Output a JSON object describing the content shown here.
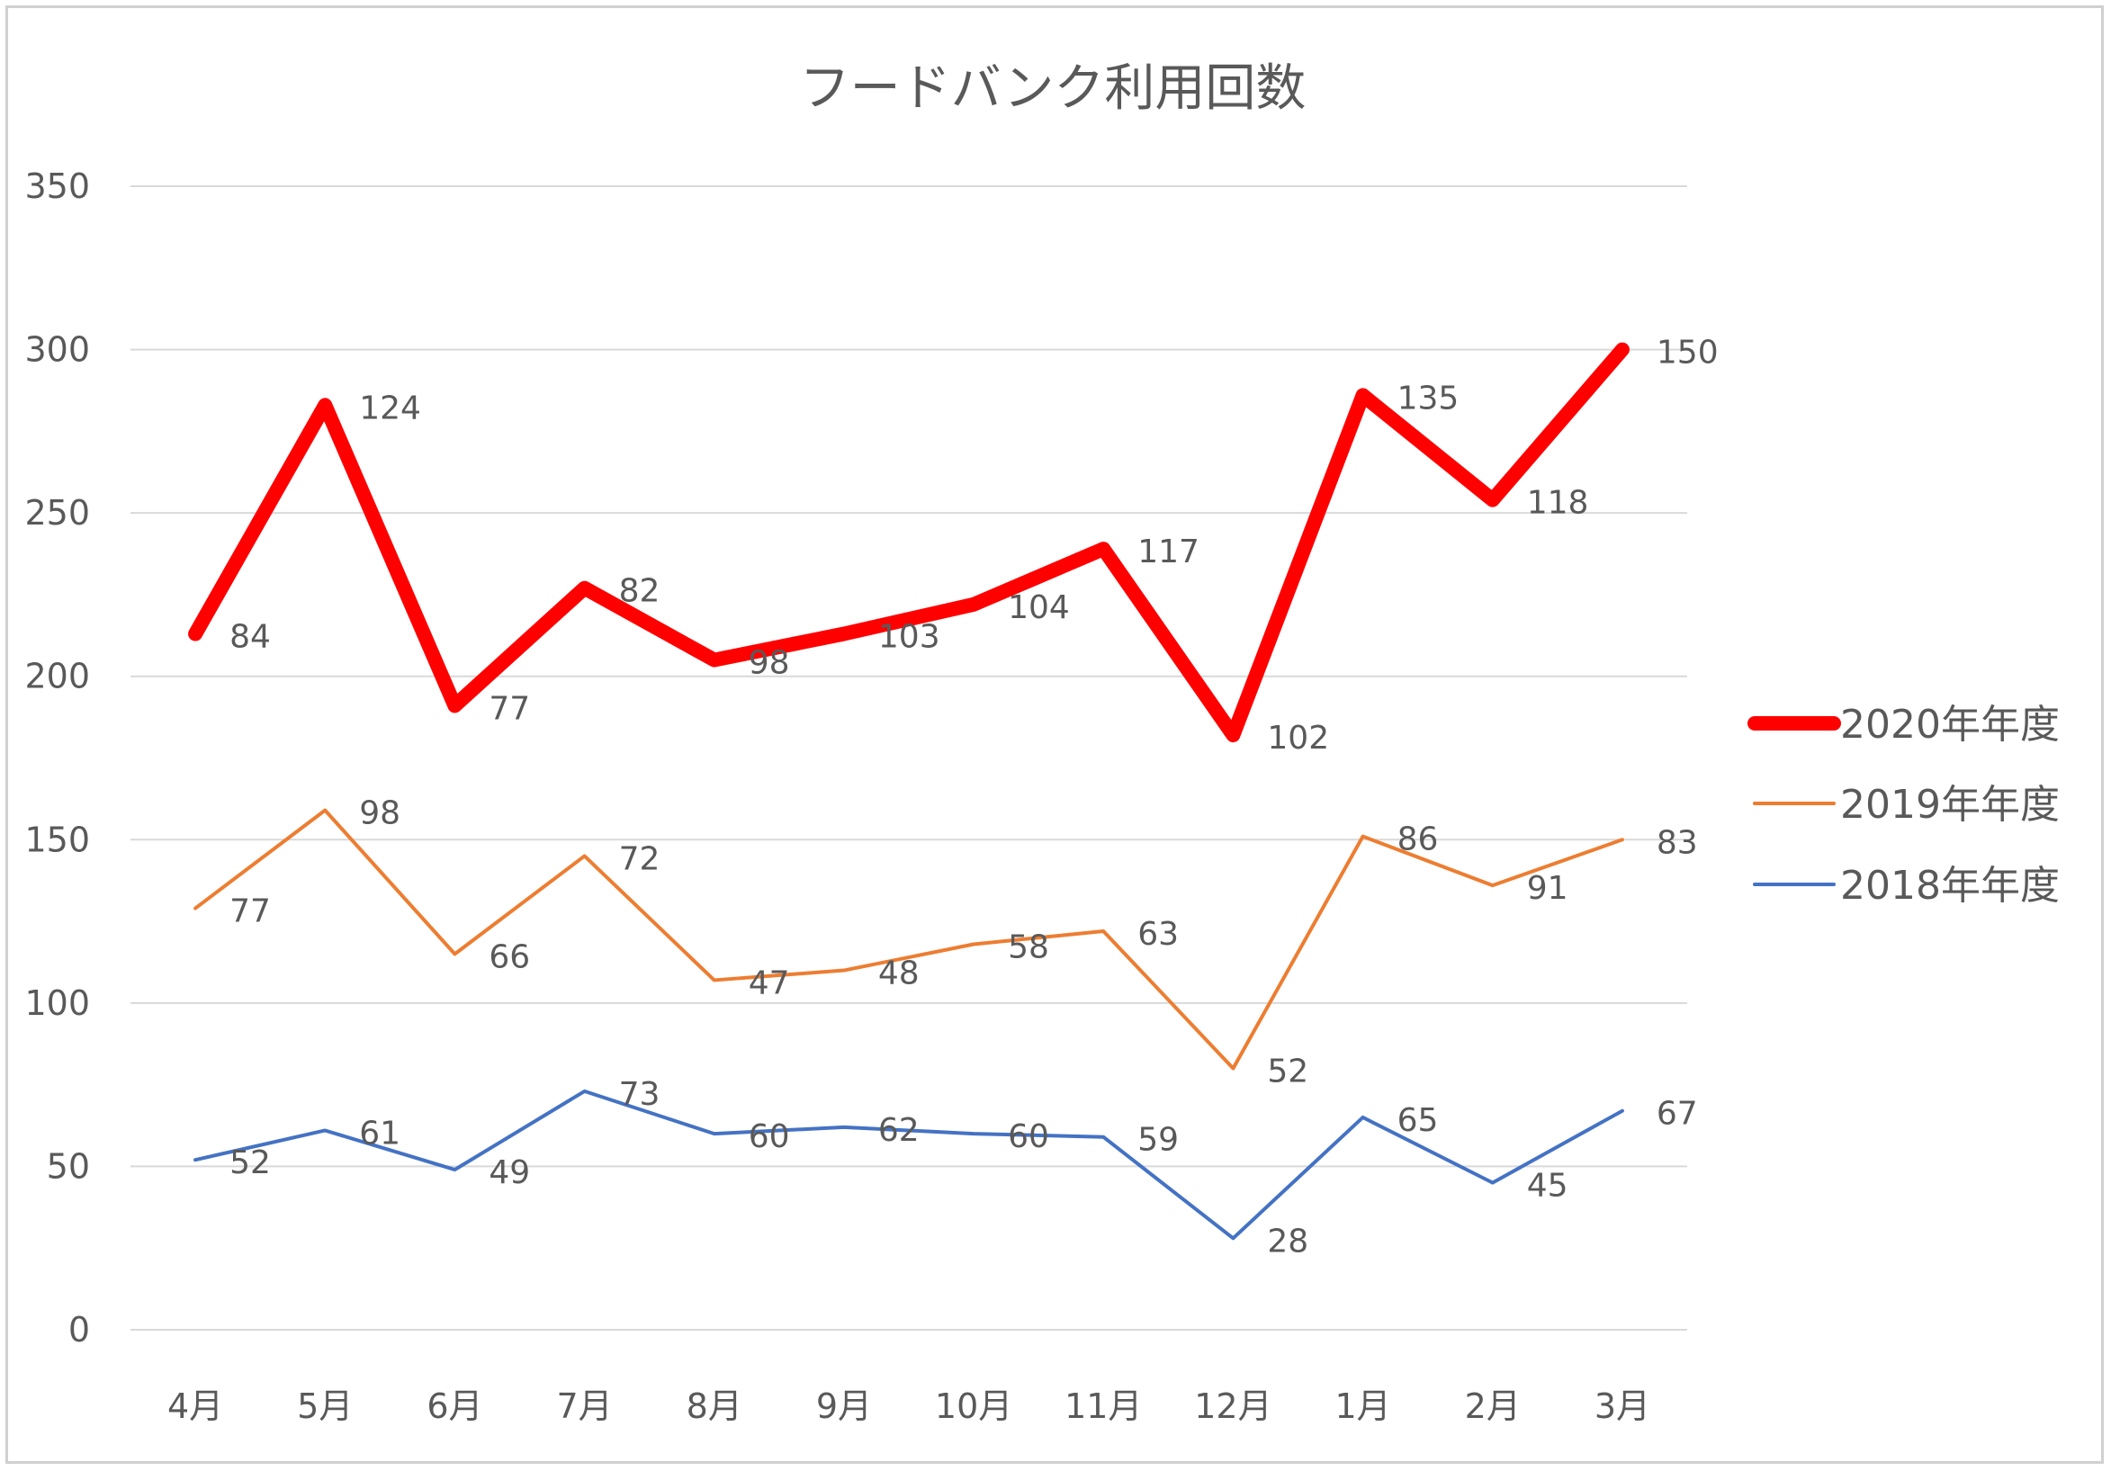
{
  "chart_data": {
    "type": "line",
    "title": "フードバンク利用回数",
    "categories": [
      "4月",
      "5月",
      "6月",
      "7月",
      "8月",
      "9月",
      "10月",
      "11月",
      "12月",
      "1月",
      "2月",
      "3月"
    ],
    "ylim": [
      0,
      350
    ],
    "yticks": [
      0,
      50,
      100,
      150,
      200,
      250,
      300,
      350
    ],
    "grid": true,
    "legend_position": "right",
    "series": [
      {
        "name": "2020年年度",
        "color": "#ff0000",
        "positions": [
          213,
          283,
          191,
          227,
          205,
          213,
          222,
          239,
          182,
          286,
          254,
          300
        ],
        "labels": [
          84,
          124,
          77,
          82,
          98,
          103,
          104,
          117,
          102,
          135,
          118,
          150
        ]
      },
      {
        "name": "2019年年度",
        "color": "#ed7d31",
        "positions": [
          129,
          159,
          115,
          145,
          107,
          110,
          118,
          122,
          80,
          151,
          136,
          150
        ],
        "labels": [
          77,
          98,
          66,
          72,
          47,
          48,
          58,
          63,
          52,
          86,
          91,
          83
        ]
      },
      {
        "name": "2018年年度",
        "color": "#4472c4",
        "positions": [
          52,
          61,
          49,
          73,
          60,
          62,
          60,
          59,
          28,
          65,
          45,
          67
        ],
        "labels": [
          52,
          61,
          49,
          73,
          60,
          62,
          60,
          59,
          28,
          65,
          45,
          67
        ]
      }
    ]
  }
}
